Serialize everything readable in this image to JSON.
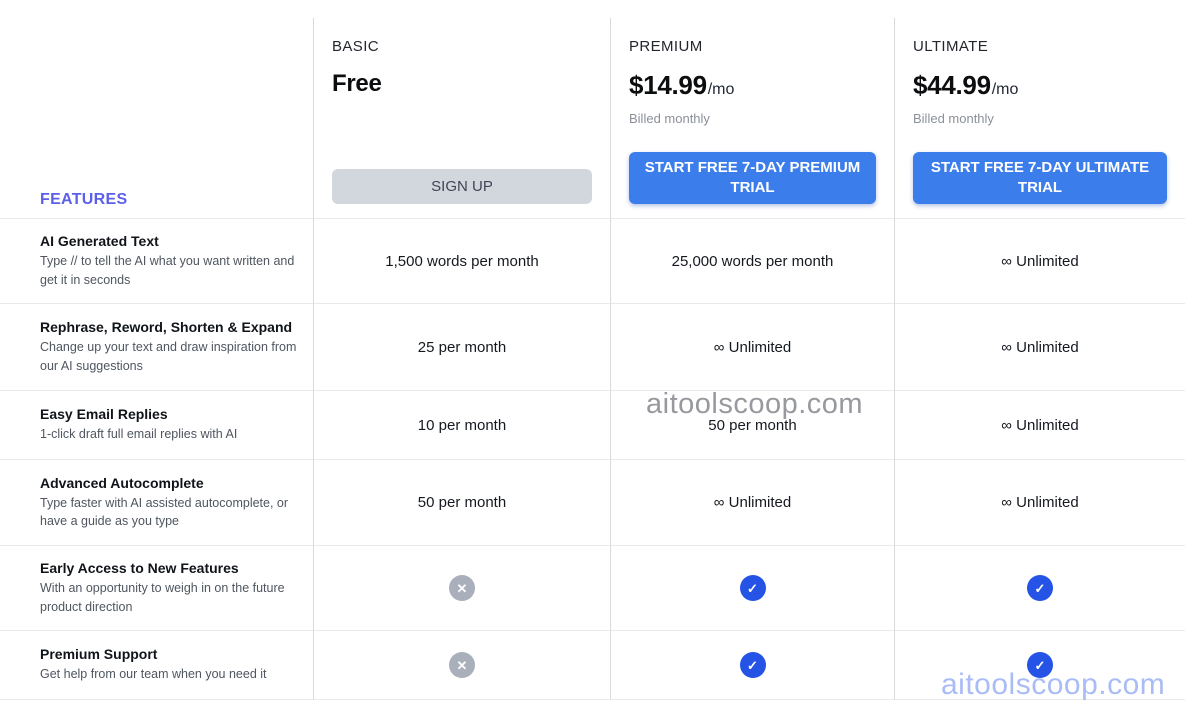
{
  "features_header": "FEATURES",
  "plans": [
    {
      "name": "BASIC",
      "price": "Free",
      "period": "",
      "billing_note": "",
      "button": "SIGN UP"
    },
    {
      "name": "PREMIUM",
      "price": "$14.99",
      "period": "/mo",
      "billing_note": "Billed monthly",
      "button": "START FREE 7-DAY PREMIUM TRIAL"
    },
    {
      "name": "ULTIMATE",
      "price": "$44.99",
      "period": "/mo",
      "billing_note": "Billed monthly",
      "button": "START FREE 7-DAY ULTIMATE TRIAL"
    }
  ],
  "rows": [
    {
      "title": "AI Generated Text",
      "description": "Type // to tell the AI what you want written and get it in seconds",
      "basic": "1,500 words per month",
      "premium": "25,000 words per month",
      "ultimate": "∞ Unlimited"
    },
    {
      "title": "Rephrase, Reword, Shorten & Expand",
      "description": "Change up your text and draw inspiration from our AI suggestions",
      "basic": "25 per month",
      "premium": "∞ Unlimited",
      "ultimate": "∞ Unlimited"
    },
    {
      "title": "Easy Email Replies",
      "description": "1-click draft full email replies with AI",
      "basic": "10 per month",
      "premium": "50 per month",
      "ultimate": "∞ Unlimited"
    },
    {
      "title": "Advanced Autocomplete",
      "description": "Type faster with AI assisted autocomplete, or have a guide as you type",
      "basic": "50 per month",
      "premium": "∞ Unlimited",
      "ultimate": "∞ Unlimited"
    },
    {
      "title": "Early Access to New Features",
      "description": "With an opportunity to weigh in on the future product direction",
      "basic_icon": "cross-icon",
      "premium_icon": "check-icon",
      "ultimate_icon": "check-icon"
    },
    {
      "title": "Premium Support",
      "description": "Get help from our team when you need it",
      "basic_icon": "cross-icon",
      "premium_icon": "check-icon",
      "ultimate_icon": "check-icon"
    }
  ],
  "icons": {
    "check_glyph": "✓",
    "cross_glyph": "✕"
  },
  "watermark": {
    "text": "aitoolscoop.com"
  },
  "colors": {
    "accent_blue": "#3C7DEC",
    "check_blue": "#2453E5",
    "cross_gray": "#A9AFBB",
    "features_indigo": "#5C5FE9",
    "gray_button": "#D2D6DD",
    "watermark_gray": "#97999E",
    "watermark_blue": "#A9BCF5"
  }
}
